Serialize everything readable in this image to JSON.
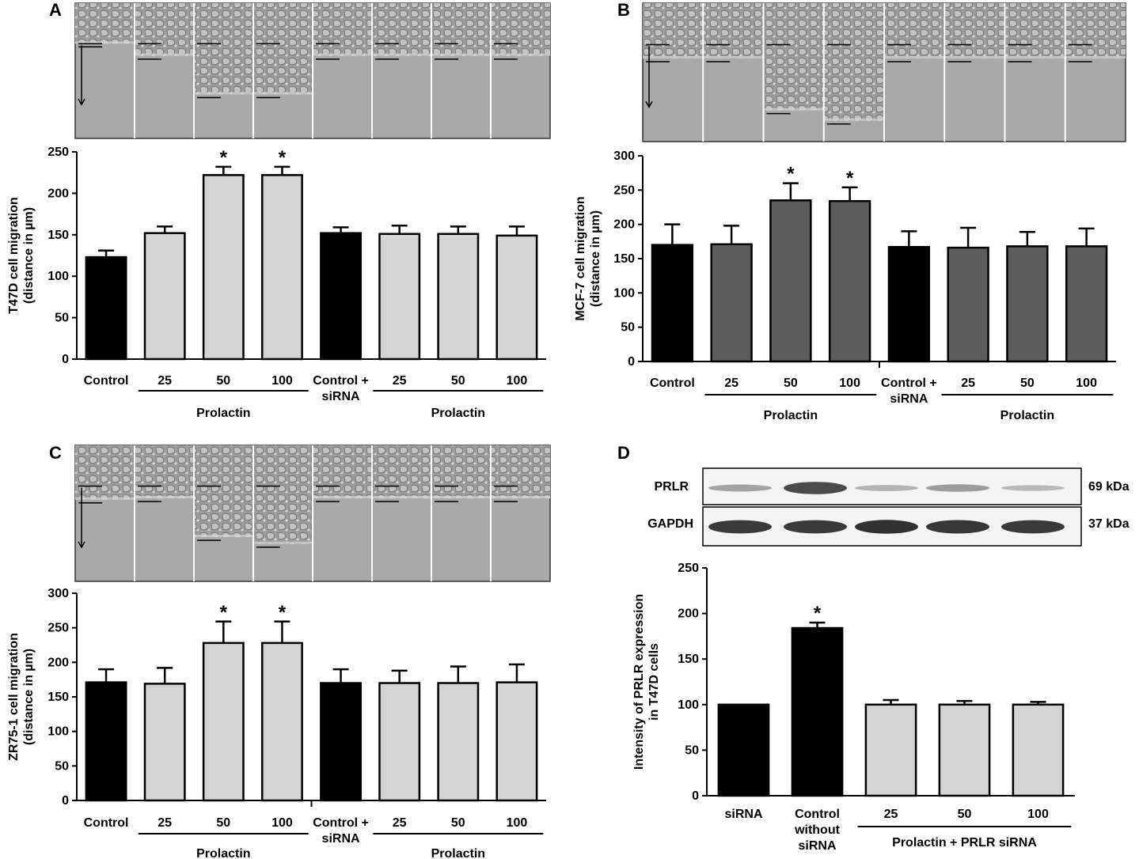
{
  "panels": [
    {
      "letter": "A"
    },
    {
      "letter": "B"
    },
    {
      "letter": "C"
    },
    {
      "letter": "D"
    }
  ],
  "blot": {
    "rows": [
      {
        "label": "PRLR",
        "size": "69 kDa",
        "intensities": [
          0.25,
          0.8,
          0.15,
          0.3,
          0.12
        ]
      },
      {
        "label": "GAPDH",
        "size": "37 kDa",
        "intensities": [
          0.9,
          0.9,
          0.95,
          0.92,
          0.9
        ]
      }
    ]
  },
  "micrographs": {
    "A": {
      "frames": 8,
      "edge_offsets": [
        0,
        0.18,
        0.75,
        0.75,
        0.18,
        0.18,
        0.18,
        0.18
      ]
    },
    "B": {
      "frames": 8,
      "edge_offsets": [
        0.2,
        0.2,
        0.95,
        1.1,
        0.2,
        0.2,
        0.2,
        0.2
      ]
    },
    "C": {
      "frames": 8,
      "edge_offsets": [
        0.2,
        0.18,
        0.75,
        0.85,
        0.18,
        0.18,
        0.18,
        0.18
      ]
    }
  },
  "chart_data": [
    {
      "panel": "A",
      "type": "bar",
      "categories": [
        "Control",
        "25",
        "50",
        "100",
        "Control + siRNA",
        "25",
        "50",
        "100"
      ],
      "category_lines": [
        [
          "Control"
        ],
        [
          "25"
        ],
        [
          "50"
        ],
        [
          "100"
        ],
        [
          "Control +",
          "siRNA"
        ],
        [
          "25"
        ],
        [
          "50"
        ],
        [
          "100"
        ]
      ],
      "values": [
        123,
        152,
        222,
        222,
        152,
        151,
        151,
        149
      ],
      "errors": [
        8,
        8,
        10,
        10,
        7,
        10,
        9,
        11
      ],
      "colors": [
        "#000000",
        "#d4d4d4",
        "#d4d4d4",
        "#d4d4d4",
        "#000000",
        "#d4d4d4",
        "#d4d4d4",
        "#d4d4d4"
      ],
      "significant": [
        "",
        "",
        "*",
        "*",
        "",
        "",
        "",
        ""
      ],
      "groups": [
        {
          "label": "Prolactin",
          "from": 1,
          "to": 3
        },
        {
          "label": "Prolactin",
          "from": 5,
          "to": 7
        }
      ],
      "ylabel": [
        "T47D cell migration",
        "(distance in µm)"
      ],
      "ylim": [
        0,
        250
      ],
      "yticks": [
        "0",
        "50",
        "100",
        "150",
        "200",
        "250"
      ]
    },
    {
      "panel": "B",
      "type": "bar",
      "categories": [
        "Control",
        "25",
        "50",
        "100",
        "Control + siRNA",
        "25",
        "50",
        "100"
      ],
      "category_lines": [
        [
          "Control"
        ],
        [
          "25"
        ],
        [
          "50"
        ],
        [
          "100"
        ],
        [
          "Control +",
          "siRNA"
        ],
        [
          "25"
        ],
        [
          "50"
        ],
        [
          "100"
        ]
      ],
      "values": [
        170,
        171,
        235,
        234,
        167,
        166,
        168,
        168
      ],
      "errors": [
        30,
        27,
        25,
        20,
        23,
        29,
        21,
        26
      ],
      "colors": [
        "#000000",
        "#5c5c5c",
        "#5c5c5c",
        "#5c5c5c",
        "#000000",
        "#5c5c5c",
        "#5c5c5c",
        "#5c5c5c"
      ],
      "significant": [
        "",
        "",
        "*",
        "*",
        "",
        "",
        "",
        ""
      ],
      "groups": [
        {
          "label": "Prolactin",
          "from": 1,
          "to": 3
        },
        {
          "label": "Prolactin",
          "from": 5,
          "to": 7
        }
      ],
      "ylabel": [
        "MCF-7 cell migration",
        "(distance in µm)"
      ],
      "ylim": [
        0,
        300
      ],
      "yticks": [
        "0",
        "50",
        "100",
        "150",
        "200",
        "250",
        "300"
      ]
    },
    {
      "panel": "C",
      "type": "bar",
      "categories": [
        "Control",
        "25",
        "50",
        "100",
        "Control + siRNA",
        "25",
        "50",
        "100"
      ],
      "category_lines": [
        [
          "Control"
        ],
        [
          "25"
        ],
        [
          "50"
        ],
        [
          "100"
        ],
        [
          "Control +",
          "siRNA"
        ],
        [
          "25"
        ],
        [
          "50"
        ],
        [
          "100"
        ]
      ],
      "values": [
        171,
        169,
        228,
        228,
        170,
        170,
        170,
        171
      ],
      "errors": [
        19,
        23,
        31,
        31,
        20,
        18,
        24,
        26
      ],
      "colors": [
        "#000000",
        "#d4d4d4",
        "#d4d4d4",
        "#d4d4d4",
        "#000000",
        "#d4d4d4",
        "#d4d4d4",
        "#d4d4d4"
      ],
      "significant": [
        "",
        "",
        "*",
        "*",
        "",
        "",
        "",
        ""
      ],
      "groups": [
        {
          "label": "Prolactin",
          "from": 1,
          "to": 3
        },
        {
          "label": "Prolactin",
          "from": 5,
          "to": 7
        }
      ],
      "ylabel": [
        "ZR75-1 cell migration",
        "(distance in µm)"
      ],
      "ylim": [
        0,
        300
      ],
      "yticks": [
        "0",
        "50",
        "100",
        "150",
        "200",
        "250",
        "300"
      ]
    },
    {
      "panel": "D",
      "type": "bar",
      "categories": [
        "siRNA",
        "Control without siRNA",
        "25",
        "50",
        "100"
      ],
      "category_lines": [
        [
          "siRNA"
        ],
        [
          "Control",
          "without",
          "siRNA"
        ],
        [
          "25"
        ],
        [
          "50"
        ],
        [
          "100"
        ]
      ],
      "values": [
        100,
        184,
        100,
        100,
        100
      ],
      "errors": [
        0,
        6,
        5,
        4,
        3
      ],
      "colors": [
        "#000000",
        "#000000",
        "#d4d4d4",
        "#d4d4d4",
        "#d4d4d4"
      ],
      "significant": [
        "",
        "*",
        "",
        "",
        ""
      ],
      "groups": [
        {
          "label": "Prolactin + PRLR siRNA",
          "from": 2,
          "to": 4
        }
      ],
      "ylabel": [
        "Intensity of PRLR expression",
        "in T47D cells"
      ],
      "ylim": [
        0,
        250
      ],
      "yticks": [
        "0",
        "50",
        "100",
        "150",
        "200",
        "250"
      ]
    }
  ]
}
